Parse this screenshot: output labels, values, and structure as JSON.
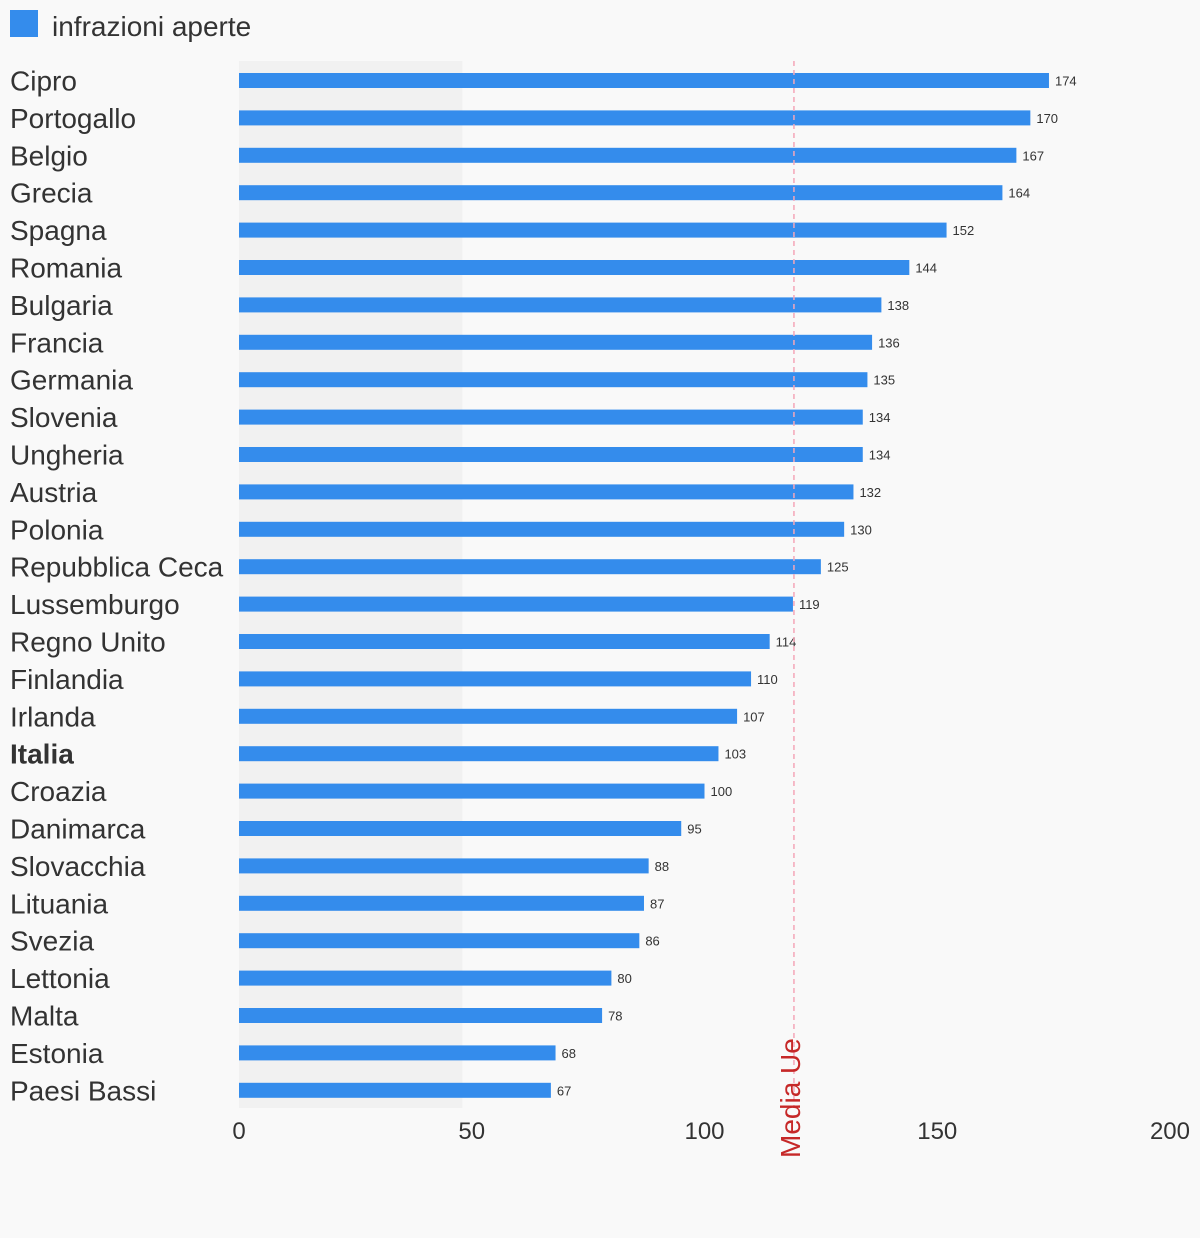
{
  "chart_data": {
    "type": "bar",
    "orientation": "horizontal",
    "title": "",
    "xlabel": "",
    "ylabel": "",
    "xlim": [
      0,
      200
    ],
    "x_ticks": [
      0,
      50,
      100,
      150,
      200
    ],
    "legend": {
      "label": "infrazioni aperte",
      "placement": "top-left"
    },
    "series": [
      {
        "name": "infrazioni aperte",
        "color": "#348cec",
        "values": [
          174,
          170,
          167,
          164,
          152,
          144,
          138,
          136,
          135,
          134,
          134,
          132,
          130,
          125,
          119,
          114,
          110,
          107,
          103,
          100,
          95,
          88,
          87,
          86,
          80,
          78,
          68,
          67
        ]
      }
    ],
    "categories": [
      "Cipro",
      "Portogallo",
      "Belgio",
      "Grecia",
      "Spagna",
      "Romania",
      "Bulgaria",
      "Francia",
      "Germania",
      "Slovenia",
      "Ungheria",
      "Austria",
      "Polonia",
      "Repubblica Ceca",
      "Lussemburgo",
      "Regno Unito",
      "Finlandia",
      "Irlanda",
      "Italia",
      "Croazia",
      "Danimarca",
      "Slovacchia",
      "Lituania",
      "Svezia",
      "Lettonia",
      "Malta",
      "Estonia",
      "Paesi Bassi"
    ],
    "highlighted_category": "Italia",
    "band": {
      "from": 0,
      "to": 48,
      "color": "#f1f1f1"
    },
    "reference_line": {
      "value": 119,
      "label": "Media Ue",
      "line_color": "#f4a6b8",
      "label_color": "#c62828"
    },
    "grid": false,
    "colors": {
      "bar": "#348cec",
      "text": "#333333",
      "background": "#f9f9f9"
    }
  }
}
